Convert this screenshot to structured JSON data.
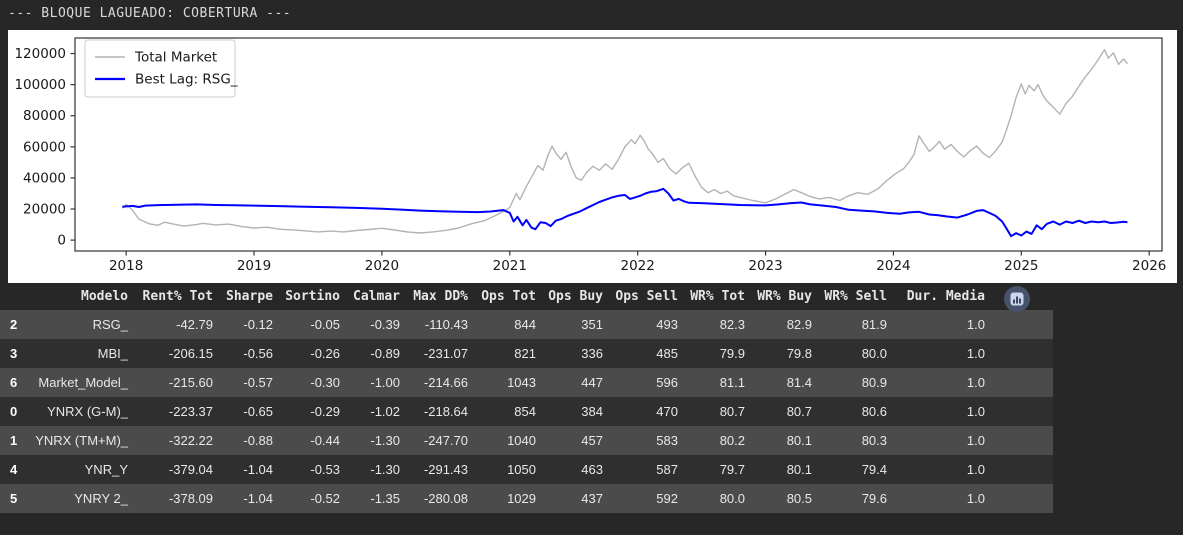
{
  "page": {
    "title_bar": "--- BLOQUE LAGUEADO: COBERTURA ---"
  },
  "colors": {
    "page_background": "#272727",
    "figure_background": "#ffffff",
    "row_light": "#4b4b4b",
    "row_dark": "#2f2f2f",
    "table_text": "#e8e8e8",
    "axis": "#333333",
    "tick_text": "#1a1a1a",
    "legend_border": "#cccccc",
    "series_gray": "#b3b3b3",
    "series_blue": "#0000ff",
    "button_circle": "#46536a",
    "button_glyph_bg": "#c9d6ee",
    "button_glyph_bars": "#3c4759"
  },
  "chart_data": {
    "type": "line",
    "title": "",
    "xlabel": "",
    "ylabel": "",
    "grid": false,
    "xlim": [
      2017.6,
      2026.1
    ],
    "ylim": [
      -7000,
      130000
    ],
    "xticks": [
      2018,
      2019,
      2020,
      2021,
      2022,
      2023,
      2024,
      2025,
      2026
    ],
    "yticks": [
      0,
      20000,
      40000,
      60000,
      80000,
      100000,
      120000
    ],
    "legend": {
      "position": "upper-left",
      "entries": [
        {
          "label": "Total Market",
          "color": "#b3b3b3"
        },
        {
          "label": "Best Lag: RSG_",
          "color": "#0000ff"
        }
      ]
    },
    "series": [
      {
        "name": "Total Market",
        "color": "#b3b3b3",
        "width": 1.4,
        "points": [
          [
            2017.97,
            20500
          ],
          [
            2018.0,
            23000
          ],
          [
            2018.03,
            21000
          ],
          [
            2018.06,
            18000
          ],
          [
            2018.1,
            13500
          ],
          [
            2018.14,
            12000
          ],
          [
            2018.18,
            10500
          ],
          [
            2018.25,
            9500
          ],
          [
            2018.3,
            11500
          ],
          [
            2018.36,
            10500
          ],
          [
            2018.45,
            9000
          ],
          [
            2018.55,
            10000
          ],
          [
            2018.6,
            10800
          ],
          [
            2018.7,
            9800
          ],
          [
            2018.8,
            10300
          ],
          [
            2018.9,
            8800
          ],
          [
            2019.0,
            7800
          ],
          [
            2019.1,
            8300
          ],
          [
            2019.2,
            7000
          ],
          [
            2019.35,
            6300
          ],
          [
            2019.5,
            5300
          ],
          [
            2019.6,
            5800
          ],
          [
            2019.7,
            5300
          ],
          [
            2019.8,
            6200
          ],
          [
            2019.9,
            6800
          ],
          [
            2020.0,
            7600
          ],
          [
            2020.1,
            6500
          ],
          [
            2020.2,
            5200
          ],
          [
            2020.3,
            4600
          ],
          [
            2020.4,
            5300
          ],
          [
            2020.5,
            6300
          ],
          [
            2020.6,
            7800
          ],
          [
            2020.7,
            10500
          ],
          [
            2020.8,
            12500
          ],
          [
            2020.88,
            15500
          ],
          [
            2020.95,
            18500
          ],
          [
            2021.0,
            21000
          ],
          [
            2021.05,
            30000
          ],
          [
            2021.08,
            26000
          ],
          [
            2021.12,
            33000
          ],
          [
            2021.18,
            42000
          ],
          [
            2021.22,
            48000
          ],
          [
            2021.26,
            45000
          ],
          [
            2021.3,
            55000
          ],
          [
            2021.33,
            60500
          ],
          [
            2021.36,
            56000
          ],
          [
            2021.4,
            52000
          ],
          [
            2021.44,
            56500
          ],
          [
            2021.48,
            47000
          ],
          [
            2021.52,
            40000
          ],
          [
            2021.56,
            38500
          ],
          [
            2021.6,
            43500
          ],
          [
            2021.65,
            47500
          ],
          [
            2021.7,
            45000
          ],
          [
            2021.75,
            49000
          ],
          [
            2021.8,
            45500
          ],
          [
            2021.85,
            52000
          ],
          [
            2021.9,
            60000
          ],
          [
            2021.95,
            64500
          ],
          [
            2021.98,
            62000
          ],
          [
            2022.02,
            67500
          ],
          [
            2022.05,
            64000
          ],
          [
            2022.08,
            59000
          ],
          [
            2022.12,
            55000
          ],
          [
            2022.16,
            50000
          ],
          [
            2022.2,
            52500
          ],
          [
            2022.25,
            46000
          ],
          [
            2022.3,
            42500
          ],
          [
            2022.35,
            46500
          ],
          [
            2022.4,
            49500
          ],
          [
            2022.45,
            41000
          ],
          [
            2022.5,
            34000
          ],
          [
            2022.55,
            30500
          ],
          [
            2022.6,
            32500
          ],
          [
            2022.65,
            30000
          ],
          [
            2022.7,
            31500
          ],
          [
            2022.75,
            28500
          ],
          [
            2022.82,
            27000
          ],
          [
            2022.9,
            25500
          ],
          [
            2023.0,
            24000
          ],
          [
            2023.08,
            26500
          ],
          [
            2023.15,
            29500
          ],
          [
            2023.22,
            32500
          ],
          [
            2023.28,
            30500
          ],
          [
            2023.35,
            28000
          ],
          [
            2023.42,
            26500
          ],
          [
            2023.5,
            27500
          ],
          [
            2023.58,
            25500
          ],
          [
            2023.65,
            28500
          ],
          [
            2023.72,
            30500
          ],
          [
            2023.8,
            29500
          ],
          [
            2023.88,
            33000
          ],
          [
            2023.95,
            38500
          ],
          [
            2024.02,
            43000
          ],
          [
            2024.08,
            46000
          ],
          [
            2024.12,
            50000
          ],
          [
            2024.16,
            55000
          ],
          [
            2024.2,
            67000
          ],
          [
            2024.24,
            62000
          ],
          [
            2024.28,
            57000
          ],
          [
            2024.32,
            60000
          ],
          [
            2024.36,
            63500
          ],
          [
            2024.4,
            58500
          ],
          [
            2024.45,
            61500
          ],
          [
            2024.5,
            57000
          ],
          [
            2024.55,
            53500
          ],
          [
            2024.6,
            57500
          ],
          [
            2024.65,
            60500
          ],
          [
            2024.7,
            56000
          ],
          [
            2024.75,
            53000
          ],
          [
            2024.8,
            57500
          ],
          [
            2024.85,
            63000
          ],
          [
            2024.88,
            70000
          ],
          [
            2024.92,
            80000
          ],
          [
            2024.96,
            92000
          ],
          [
            2025.0,
            100500
          ],
          [
            2025.03,
            94000
          ],
          [
            2025.06,
            99500
          ],
          [
            2025.1,
            96000
          ],
          [
            2025.13,
            100000
          ],
          [
            2025.17,
            93000
          ],
          [
            2025.2,
            89500
          ],
          [
            2025.25,
            85500
          ],
          [
            2025.3,
            81000
          ],
          [
            2025.35,
            88000
          ],
          [
            2025.4,
            92500
          ],
          [
            2025.45,
            99000
          ],
          [
            2025.5,
            105000
          ],
          [
            2025.55,
            110000
          ],
          [
            2025.6,
            116000
          ],
          [
            2025.65,
            122500
          ],
          [
            2025.68,
            117000
          ],
          [
            2025.72,
            120500
          ],
          [
            2025.76,
            113000
          ],
          [
            2025.8,
            116500
          ],
          [
            2025.83,
            113500
          ]
        ]
      },
      {
        "name": "Best Lag: RSG_",
        "color": "#0000ff",
        "width": 2,
        "points": [
          [
            2017.97,
            21500
          ],
          [
            2018.05,
            22000
          ],
          [
            2018.1,
            21300
          ],
          [
            2018.15,
            22200
          ],
          [
            2018.25,
            22500
          ],
          [
            2018.4,
            22800
          ],
          [
            2018.55,
            23000
          ],
          [
            2018.7,
            22600
          ],
          [
            2018.85,
            22400
          ],
          [
            2019.0,
            22200
          ],
          [
            2019.2,
            21900
          ],
          [
            2019.4,
            21500
          ],
          [
            2019.6,
            21200
          ],
          [
            2019.8,
            20700
          ],
          [
            2020.0,
            20200
          ],
          [
            2020.15,
            19600
          ],
          [
            2020.3,
            19000
          ],
          [
            2020.45,
            18600
          ],
          [
            2020.6,
            18200
          ],
          [
            2020.75,
            18000
          ],
          [
            2020.85,
            18400
          ],
          [
            2020.95,
            19300
          ],
          [
            2021.0,
            17500
          ],
          [
            2021.03,
            12000
          ],
          [
            2021.06,
            15000
          ],
          [
            2021.1,
            9500
          ],
          [
            2021.13,
            13000
          ],
          [
            2021.17,
            8000
          ],
          [
            2021.2,
            7000
          ],
          [
            2021.24,
            11500
          ],
          [
            2021.28,
            11000
          ],
          [
            2021.32,
            9000
          ],
          [
            2021.36,
            12500
          ],
          [
            2021.4,
            13500
          ],
          [
            2021.45,
            15500
          ],
          [
            2021.5,
            17000
          ],
          [
            2021.55,
            18500
          ],
          [
            2021.6,
            20500
          ],
          [
            2021.65,
            22500
          ],
          [
            2021.7,
            24500
          ],
          [
            2021.75,
            26000
          ],
          [
            2021.8,
            27500
          ],
          [
            2021.85,
            28500
          ],
          [
            2021.9,
            29000
          ],
          [
            2021.94,
            26500
          ],
          [
            2021.98,
            27500
          ],
          [
            2022.02,
            28500
          ],
          [
            2022.06,
            30000
          ],
          [
            2022.1,
            31000
          ],
          [
            2022.15,
            31500
          ],
          [
            2022.2,
            33000
          ],
          [
            2022.24,
            30000
          ],
          [
            2022.28,
            25500
          ],
          [
            2022.32,
            26500
          ],
          [
            2022.36,
            25000
          ],
          [
            2022.4,
            24000
          ],
          [
            2022.5,
            23800
          ],
          [
            2022.6,
            23400
          ],
          [
            2022.7,
            23000
          ],
          [
            2022.8,
            22600
          ],
          [
            2022.9,
            22400
          ],
          [
            2023.0,
            22300
          ],
          [
            2023.1,
            23000
          ],
          [
            2023.2,
            23800
          ],
          [
            2023.28,
            24200
          ],
          [
            2023.35,
            23000
          ],
          [
            2023.45,
            22200
          ],
          [
            2023.55,
            21300
          ],
          [
            2023.65,
            19500
          ],
          [
            2023.75,
            19000
          ],
          [
            2023.85,
            18500
          ],
          [
            2023.95,
            17500
          ],
          [
            2024.05,
            17000
          ],
          [
            2024.12,
            17800
          ],
          [
            2024.2,
            18200
          ],
          [
            2024.28,
            16500
          ],
          [
            2024.35,
            16000
          ],
          [
            2024.42,
            15200
          ],
          [
            2024.5,
            14500
          ],
          [
            2024.58,
            16500
          ],
          [
            2024.65,
            18800
          ],
          [
            2024.7,
            19300
          ],
          [
            2024.75,
            17500
          ],
          [
            2024.8,
            15500
          ],
          [
            2024.85,
            12000
          ],
          [
            2024.88,
            8000
          ],
          [
            2024.92,
            2500
          ],
          [
            2024.96,
            4500
          ],
          [
            2025.0,
            3000
          ],
          [
            2025.04,
            5500
          ],
          [
            2025.08,
            4000
          ],
          [
            2025.12,
            9500
          ],
          [
            2025.16,
            7000
          ],
          [
            2025.2,
            10500
          ],
          [
            2025.25,
            12000
          ],
          [
            2025.3,
            10000
          ],
          [
            2025.35,
            12000
          ],
          [
            2025.4,
            11000
          ],
          [
            2025.45,
            12500
          ],
          [
            2025.5,
            11000
          ],
          [
            2025.55,
            12000
          ],
          [
            2025.6,
            11500
          ],
          [
            2025.65,
            12000
          ],
          [
            2025.7,
            11000
          ],
          [
            2025.75,
            11300
          ],
          [
            2025.8,
            11800
          ],
          [
            2025.83,
            11500
          ]
        ]
      }
    ]
  },
  "table": {
    "columns": [
      "",
      "Modelo",
      "Rent% Tot",
      "Sharpe",
      "Sortino",
      "Calmar",
      "Max DD%",
      "Ops Tot",
      "Ops Buy",
      "Ops Sell",
      "WR% Tot",
      "WR% Buy",
      "WR% Sell",
      "Dur. Media"
    ],
    "rows": [
      {
        "index": "2",
        "cells": [
          "RSG_",
          "-42.79",
          "-0.12",
          "-0.05",
          "-0.39",
          "-110.43",
          "844",
          "351",
          "493",
          "82.3",
          "82.9",
          "81.9",
          "1.0"
        ]
      },
      {
        "index": "3",
        "cells": [
          "MBI_",
          "-206.15",
          "-0.56",
          "-0.26",
          "-0.89",
          "-231.07",
          "821",
          "336",
          "485",
          "79.9",
          "79.8",
          "80.0",
          "1.0"
        ]
      },
      {
        "index": "6",
        "cells": [
          "Market_Model_",
          "-215.60",
          "-0.57",
          "-0.30",
          "-1.00",
          "-214.66",
          "1043",
          "447",
          "596",
          "81.1",
          "81.4",
          "80.9",
          "1.0"
        ]
      },
      {
        "index": "0",
        "cells": [
          "YNRX (G-M)_",
          "-223.37",
          "-0.65",
          "-0.29",
          "-1.02",
          "-218.64",
          "854",
          "384",
          "470",
          "80.7",
          "80.7",
          "80.6",
          "1.0"
        ]
      },
      {
        "index": "1",
        "cells": [
          "YNRX (TM+M)_",
          "-322.22",
          "-0.88",
          "-0.44",
          "-1.30",
          "-247.70",
          "1040",
          "457",
          "583",
          "80.2",
          "80.1",
          "80.3",
          "1.0"
        ]
      },
      {
        "index": "4",
        "cells": [
          "YNR_Y",
          "-379.04",
          "-1.04",
          "-0.53",
          "-1.30",
          "-291.43",
          "1050",
          "463",
          "587",
          "79.7",
          "80.1",
          "79.4",
          "1.0"
        ]
      },
      {
        "index": "5",
        "cells": [
          "YNRY 2_",
          "-378.09",
          "-1.04",
          "-0.52",
          "-1.35",
          "-280.08",
          "1029",
          "437",
          "592",
          "80.0",
          "80.5",
          "79.6",
          "1.0"
        ]
      }
    ]
  },
  "icons": {
    "chart_button": "bar-chart-icon"
  }
}
